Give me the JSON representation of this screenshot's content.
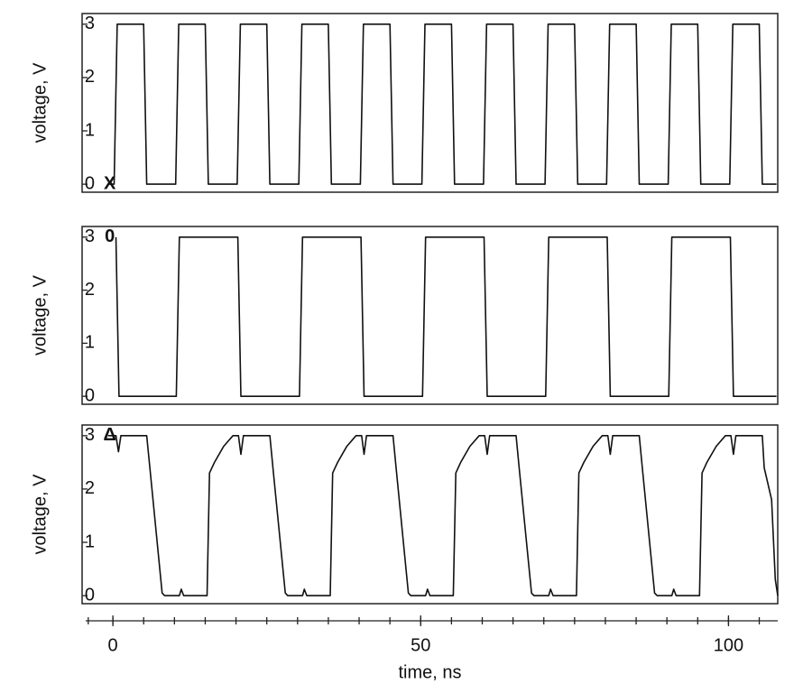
{
  "chart_data": [
    {
      "type": "line",
      "ylabel": "voltage, V",
      "annotation": "X",
      "color": "#111111",
      "xlim": [
        -5,
        108
      ],
      "ylim": [
        -0.15,
        3.2
      ],
      "yticks": [
        0,
        1,
        2,
        3
      ],
      "x": [
        -0.7,
        0.2,
        0.7,
        5,
        5.5,
        10.2,
        10.7,
        15,
        15.5,
        20.2,
        20.7,
        25,
        25.5,
        30.2,
        30.7,
        35,
        35.5,
        40.2,
        40.7,
        45,
        45.5,
        50.2,
        50.7,
        55,
        55.5,
        60.2,
        60.7,
        65,
        65.5,
        70.2,
        70.7,
        75,
        75.5,
        80.2,
        80.7,
        85,
        85.5,
        90.2,
        90.7,
        95,
        95.5,
        100.2,
        100.7,
        105,
        105.5,
        107.8
      ],
      "values": [
        0,
        0,
        3,
        3,
        0,
        0,
        3,
        3,
        0,
        0,
        3,
        3,
        0,
        0,
        3,
        3,
        0,
        0,
        3,
        3,
        0,
        0,
        3,
        3,
        0,
        0,
        3,
        3,
        0,
        0,
        3,
        3,
        0,
        0,
        3,
        3,
        0,
        0,
        3,
        3,
        0,
        0,
        3,
        3,
        0,
        0
      ]
    },
    {
      "type": "line",
      "ylabel": "voltage, V",
      "annotation": "0",
      "color": "#111111",
      "xlim": [
        -5,
        108
      ],
      "ylim": [
        -0.15,
        3.2
      ],
      "yticks": [
        0,
        1,
        2,
        3
      ],
      "x": [
        0.5,
        1.0,
        10.3,
        10.8,
        20.3,
        20.8,
        30.3,
        30.8,
        40.3,
        40.8,
        50.3,
        50.8,
        60.3,
        60.8,
        70.3,
        70.8,
        80.3,
        80.8,
        90.3,
        90.8,
        100.3,
        100.8,
        107.8
      ],
      "values": [
        3,
        0,
        0,
        3,
        3,
        0,
        0,
        3,
        3,
        0,
        0,
        3,
        3,
        0,
        0,
        3,
        3,
        0,
        0,
        3,
        3,
        0,
        0
      ]
    },
    {
      "type": "line",
      "ylabel": "voltage, V",
      "annotation": "Δ",
      "color": "#111111",
      "xlim": [
        -5,
        108
      ],
      "ylim": [
        -0.15,
        3.2
      ],
      "yticks": [
        0,
        1,
        2,
        3
      ],
      "xticks": [
        0,
        50,
        100
      ],
      "xminorticks": [
        -4,
        0,
        5,
        10,
        15,
        20,
        25,
        30,
        35,
        40,
        45,
        50,
        55,
        60,
        65,
        70,
        75,
        80,
        85,
        90,
        95,
        100,
        105
      ],
      "xlabel": "time, ns",
      "x": [
        -0.8,
        0.5,
        0.9,
        1.3,
        5.5,
        6,
        8,
        8.4,
        10.8,
        11.1,
        11.5,
        15.3,
        15.7,
        16.5,
        18,
        19.5,
        20.4,
        20.8,
        21.2,
        25.5,
        26,
        28,
        28.4,
        30.8,
        31.1,
        31.5,
        35.3,
        35.7,
        36.5,
        38,
        39.5,
        40.4,
        40.8,
        41.2,
        45.5,
        46,
        48,
        48.4,
        50.8,
        51.1,
        51.5,
        55.3,
        55.7,
        56.5,
        58,
        59.5,
        60.4,
        60.8,
        61.2,
        65.5,
        66,
        68,
        68.4,
        70.8,
        71.1,
        71.5,
        75.3,
        75.7,
        76.5,
        78,
        79.5,
        80.4,
        80.8,
        81.2,
        85.5,
        86,
        88,
        88.4,
        90.8,
        91.1,
        91.5,
        95.3,
        95.7,
        96.5,
        98,
        99.5,
        100.4,
        100.8,
        101.2,
        105.5,
        105.8,
        107,
        107.6,
        108
      ],
      "values": [
        3,
        3,
        2.7,
        3,
        3,
        2.4,
        0.05,
        0,
        0,
        0.12,
        0,
        0,
        2.3,
        2.5,
        2.8,
        3,
        3,
        2.65,
        3,
        3,
        2.4,
        0.05,
        0,
        0,
        0.12,
        0,
        0,
        2.3,
        2.5,
        2.8,
        3,
        3,
        2.65,
        3,
        3,
        2.4,
        0.05,
        0,
        0,
        0.12,
        0,
        0,
        2.3,
        2.5,
        2.8,
        3,
        3,
        2.65,
        3,
        3,
        2.4,
        0.05,
        0,
        0,
        0.12,
        0,
        0,
        2.3,
        2.5,
        2.8,
        3,
        3,
        2.65,
        3,
        3,
        2.4,
        0.05,
        0,
        0,
        0.12,
        0,
        0,
        2.3,
        2.5,
        2.8,
        3,
        3,
        2.65,
        3,
        3,
        2.4,
        1.8,
        0.3,
        0
      ]
    }
  ]
}
